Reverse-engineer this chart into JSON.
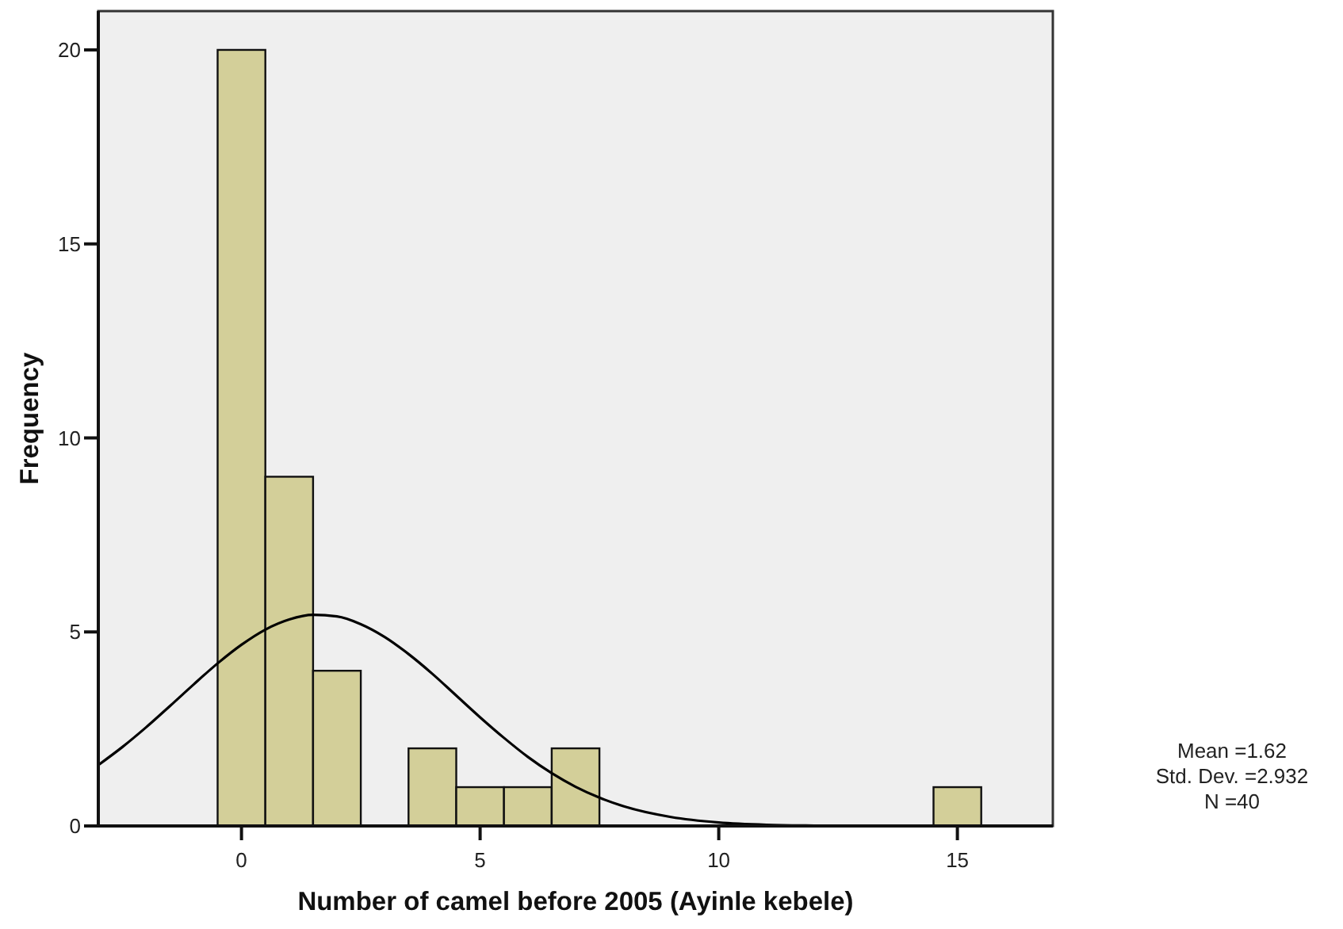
{
  "chart_data": {
    "type": "histogram",
    "xlabel": "Number of camel before 2005 (Ayinle kebele)",
    "ylabel": "Frequency",
    "xlim": [
      -3,
      17
    ],
    "ylim": [
      0,
      21
    ],
    "xticks": [
      0,
      5,
      10,
      15
    ],
    "yticks": [
      0,
      5,
      10,
      15,
      20
    ],
    "series": [
      {
        "color": "#d3cf99",
        "bins": [
          -0.5,
          0.5,
          1.5,
          2.5,
          3.5,
          4.5,
          5.5,
          6.5,
          7.5,
          8.5,
          9.5,
          10.5,
          11.5,
          12.5,
          13.5,
          14.5,
          15.5
        ],
        "values": [
          20,
          9,
          4,
          0,
          2,
          1,
          1,
          2,
          0,
          0,
          0,
          0,
          0,
          0,
          0,
          1
        ]
      },
      {
        "type": "line",
        "color": "#000000",
        "x": [
          -3,
          -2.5,
          -2,
          -1.5,
          -1,
          -0.5,
          0,
          0.5,
          1,
          1.5,
          2,
          2.5,
          3,
          3.5,
          4,
          4.5,
          5,
          5.5,
          6,
          6.5,
          7,
          7.5,
          8,
          9,
          10,
          11,
          12,
          13,
          14,
          15,
          16,
          17
        ],
        "values": [
          1.57,
          2.03,
          2.54,
          3.09,
          3.65,
          4.19,
          4.67,
          5.06,
          5.32,
          5.44,
          5.4,
          5.2,
          4.87,
          4.43,
          3.92,
          3.36,
          2.8,
          2.27,
          1.78,
          1.36,
          1.01,
          0.73,
          0.51,
          0.23,
          0.09,
          0.03,
          0.01,
          0,
          0,
          0,
          0,
          0
        ]
      }
    ],
    "annotations": [
      "Mean =1.62",
      "Std. Dev. =2.932",
      "N =40"
    ]
  }
}
